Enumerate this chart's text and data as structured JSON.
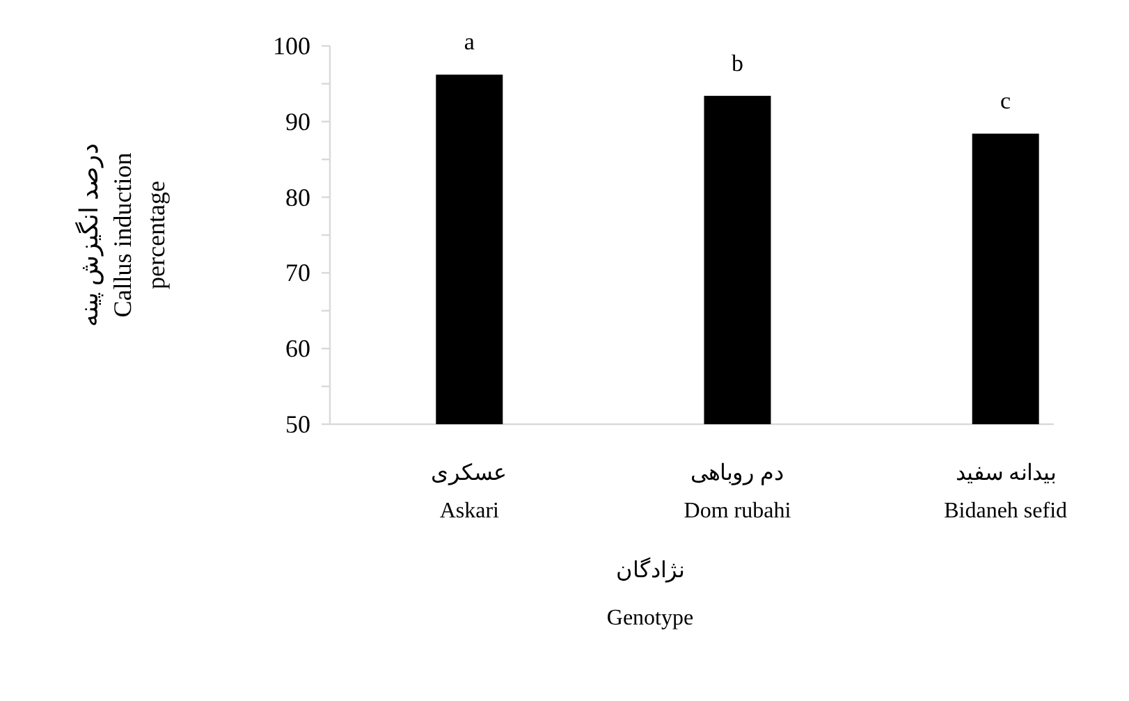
{
  "chart_data": {
    "type": "bar",
    "categories": [
      "عسکری\nAskari",
      "دم روباهی\nDom rubahi",
      "بیدانه سفید\nBidaneh sefid"
    ],
    "values": [
      96.2,
      93.4,
      88.4
    ],
    "color": "#000000",
    "xlabel": "نژادگان\nGenotype",
    "ylabel": "درصد انگیزش پینه\nCallus induction\npercentage",
    "ylim": [
      50,
      100
    ],
    "yticks": [
      50,
      {
        "value": 55,
        "label": null
      },
      60,
      {
        "value": 65,
        "label": null
      },
      70,
      {
        "value": 75,
        "label": null
      },
      80,
      {
        "value": 85,
        "label": null
      },
      90,
      {
        "value": 95,
        "label": null
      },
      100
    ],
    "annotations": [
      {
        "text": "a",
        "x": "عسکری\nAskari",
        "y": 96.2
      },
      {
        "text": "b",
        "x": "دم روباهی\nDom rubahi",
        "y": 93.4
      },
      {
        "text": "c",
        "x": "بیدانه سفید\nBidaneh sefid",
        "y": 88.4
      }
    ],
    "grid": false
  }
}
